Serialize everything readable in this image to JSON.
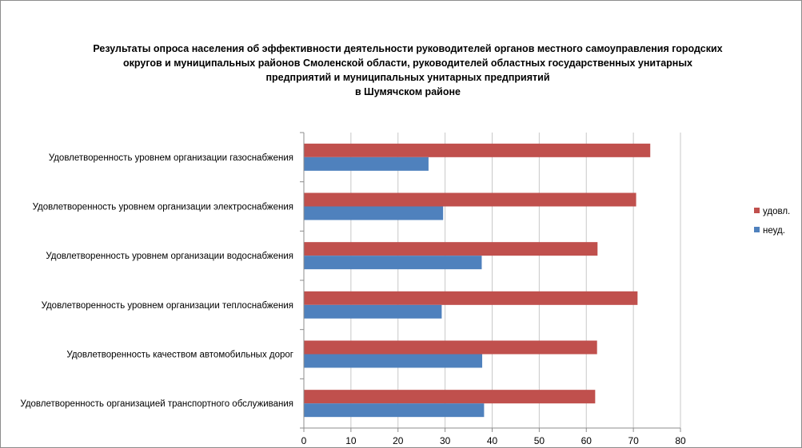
{
  "chart_data": {
    "type": "bar",
    "orientation": "horizontal",
    "title_lines": [
      "Результаты опроса населения об эффективности деятельности руководителей органов местного самоуправления городских",
      "округов и муниципальных районов Смоленской области, руководителей областных государственных унитарных",
      "предприятий и муниципальных унитарных предприятий",
      "в Шумячском районе"
    ],
    "categories": [
      "Удовлетворенность  уровнем  организации газоснабжения",
      "Удовлетворенность  уровнем организации электроснабжения",
      "Удовлетворенность  уровнем  организации водоснабжения",
      "Удовлетворенность  уровнем организации теплоснабжения",
      "Удовлетворенность  качеством  автомобильных дорог",
      "Удовлетворенность  организацией транспортного обслуживания"
    ],
    "series": [
      {
        "name": "удовл.",
        "color": "#c0504d",
        "values": [
          73.5,
          70.5,
          62.3,
          70.8,
          62.2,
          61.8
        ]
      },
      {
        "name": "неуд.",
        "color": "#4f81bd",
        "values": [
          26.4,
          29.5,
          37.7,
          29.2,
          37.8,
          38.2
        ]
      }
    ],
    "xlim": [
      0,
      80
    ],
    "xticks": [
      "0",
      "10",
      "20",
      "30",
      "40",
      "50",
      "60",
      "70",
      "80"
    ],
    "grid": true,
    "legend_position": "right"
  }
}
